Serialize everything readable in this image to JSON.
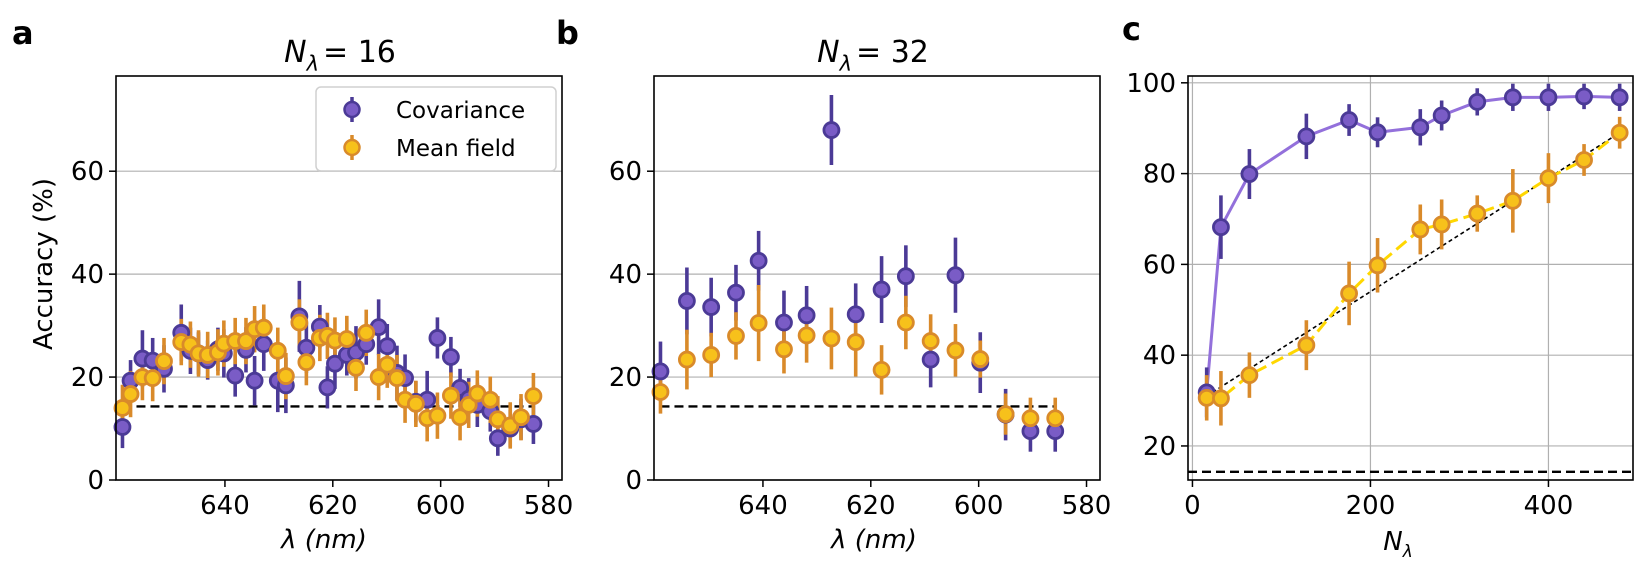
{
  "figure": {
    "panels": [
      "a",
      "b",
      "c"
    ],
    "legend": [
      "Covariance",
      "Mean field"
    ],
    "colors": {
      "cov_fill": "#7a5cc6",
      "cov_edge": "#4b3a96",
      "mf_fill": "#f7c11b",
      "mf_edge": "#d98a2a",
      "cov_line": "#9370db",
      "mf_line": "#ffd700",
      "chance": "#000000",
      "grid": "#b0b0b0"
    }
  },
  "chart_data": [
    {
      "panel": "a",
      "type": "scatter",
      "title": "N_λ = 16",
      "title_main": "N",
      "title_sub": "λ",
      "title_rest": "=  16",
      "xlabel": "λ (nm)",
      "ylabel": "Accuracy (%)",
      "xlim": [
        660.2,
        577.5
      ],
      "ylim": [
        0,
        78.5
      ],
      "xticks": [
        640,
        620,
        600,
        580
      ],
      "yticks": [
        0,
        20,
        40,
        60
      ],
      "grid": "horizontal",
      "chance_level": 14.3,
      "legend_position": "top-right",
      "series": [
        {
          "name": "Covariance",
          "x": [
            659,
            657.5,
            655.3,
            653.4,
            651.3,
            648.1,
            646.4,
            644.9,
            643.2,
            641.3,
            640.2,
            638.1,
            636.1,
            634.5,
            632.8,
            630.2,
            628.7,
            626.2,
            624.9,
            622.4,
            621,
            619.6,
            617.4,
            615.7,
            613.8,
            611.5,
            609.9,
            608.1,
            606.6,
            604.6,
            602.5,
            600.6,
            598.1,
            596.4,
            594.8,
            593.2,
            590.8,
            589.4,
            587.1,
            585.1,
            582.8
          ],
          "y": [
            10.3,
            19.3,
            23.6,
            23.2,
            21.6,
            28.6,
            25.1,
            24.6,
            23.3,
            25.4,
            24.6,
            20.3,
            25.3,
            19.3,
            26.4,
            19.3,
            18.4,
            31.8,
            25.7,
            29.8,
            18.0,
            22.6,
            24.3,
            24.8,
            26.4,
            29.7,
            26.0,
            20.8,
            19.8,
            15.2,
            15.6,
            27.6,
            23.9,
            17.9,
            15.8,
            14.6,
            13.4,
            8.1,
            10.0,
            11.8,
            10.9
          ],
          "err": [
            4.1,
            4.0,
            5.5,
            4.4,
            4.6,
            5.5,
            4.5,
            4.1,
            3.8,
            4.2,
            4.7,
            4.1,
            4.4,
            4.8,
            5.2,
            6.1,
            5.4,
            6.9,
            4.9,
            4.2,
            4.1,
            4.9,
            4.0,
            5.1,
            4.0,
            5.4,
            4.3,
            5.3,
            4.6,
            4.0,
            5.6,
            4.0,
            3.9,
            3.7,
            4.0,
            4.3,
            4.0,
            3.4,
            3.6,
            4.0,
            3.9
          ]
        },
        {
          "name": "Mean field",
          "x": [
            659,
            657.5,
            655.3,
            653.4,
            651.3,
            648.1,
            646.4,
            644.9,
            643.2,
            641.3,
            640.2,
            638.1,
            636.1,
            634.5,
            632.8,
            630.2,
            628.7,
            626.2,
            624.9,
            622.4,
            621,
            619.6,
            617.4,
            615.7,
            613.8,
            611.5,
            609.9,
            608.1,
            606.6,
            604.6,
            602.5,
            600.6,
            598.1,
            596.4,
            594.8,
            593.2,
            590.8,
            589.4,
            587.1,
            585.1,
            582.8
          ],
          "y": [
            14.0,
            16.7,
            20.0,
            19.8,
            23.1,
            26.8,
            26.3,
            24.6,
            24.3,
            24.8,
            26.5,
            27.0,
            27.0,
            29.3,
            29.6,
            25.1,
            20.2,
            30.6,
            22.9,
            27.6,
            28.0,
            27.1,
            27.4,
            21.8,
            28.6,
            20.0,
            22.4,
            19.8,
            15.6,
            14.8,
            12.0,
            12.5,
            16.4,
            12.2,
            14.6,
            16.8,
            15.6,
            11.8,
            10.6,
            12.2,
            16.3
          ]
        }
      ]
    },
    {
      "panel": "b",
      "type": "scatter",
      "title": "N_λ = 32",
      "title_main": "N",
      "title_sub": "λ",
      "title_rest": "=  32",
      "xlabel": "λ (nm)",
      "xlim": [
        660.2,
        577.5
      ],
      "ylim": [
        0,
        78.5
      ],
      "xticks": [
        640,
        620,
        600,
        580
      ],
      "yticks": [
        0,
        20,
        40,
        60
      ],
      "grid": "horizontal",
      "chance_level": 14.3,
      "series": [
        {
          "name": "Covariance",
          "x": [
            659,
            654.1,
            649.6,
            645,
            640.8,
            636.1,
            631.9,
            627.3,
            622.8,
            618,
            613.5,
            608.9,
            604.3,
            599.7,
            595,
            590.4,
            585.8
          ],
          "y": [
            21.1,
            34.8,
            33.6,
            36.4,
            42.6,
            30.6,
            32.0,
            68.0,
            32.2,
            37.0,
            39.6,
            23.4,
            39.8,
            22.8,
            12.7,
            9.5,
            9.5
          ],
          "err": [
            5.8,
            6.5,
            5.7,
            5.4,
            5.8,
            6.2,
            5.7,
            6.8,
            6.0,
            6.5,
            6.0,
            5.4,
            7.3,
            5.9,
            5.0,
            4.0,
            4.0
          ]
        },
        {
          "name": "Mean field",
          "x": [
            659,
            654.1,
            649.6,
            645,
            640.8,
            636.1,
            631.9,
            627.3,
            622.8,
            618,
            613.5,
            608.9,
            604.3,
            599.7,
            595,
            590.4,
            585.8
          ],
          "y": [
            17.1,
            23.4,
            24.3,
            28.0,
            30.5,
            25.4,
            28.1,
            27.5,
            26.8,
            21.4,
            30.6,
            27.0,
            25.2,
            23.5,
            12.8,
            12.0,
            12.0
          ],
          "err": [
            4.2,
            5.8,
            4.3,
            4.6,
            7.4,
            4.7,
            5.3,
            6.0,
            6.7,
            4.8,
            5.2,
            5.2,
            5.1,
            3.6,
            4.0,
            4.0,
            4.0
          ]
        }
      ]
    },
    {
      "panel": "c",
      "type": "line",
      "xlabel": "N_λ",
      "xlabel_main": "N",
      "xlabel_sub": "λ",
      "xlim": [
        -5,
        495
      ],
      "ylim": [
        12.5,
        101.5
      ],
      "xticks": [
        0,
        200,
        400
      ],
      "yticks": [
        20,
        40,
        60,
        80,
        100
      ],
      "grid": "both",
      "chance_level": 14.3,
      "reference_line": {
        "x": [
          16,
          480
        ],
        "y": [
          31,
          89
        ],
        "style": "dotted"
      },
      "series": [
        {
          "name": "Covariance",
          "x": [
            16,
            32,
            64,
            128,
            176,
            208,
            256,
            280,
            320,
            360,
            400,
            440,
            480
          ],
          "y": [
            31.8,
            68.2,
            79.9,
            88.2,
            91.8,
            89.1,
            90.2,
            92.8,
            95.8,
            96.8,
            96.8,
            97.0,
            96.8
          ],
          "err": [
            5.5,
            7.0,
            5.5,
            5.0,
            3.5,
            3.3,
            4.0,
            3.3,
            3.0,
            3.0,
            3.0,
            2.8,
            3.0
          ]
        },
        {
          "name": "Mean field",
          "x": [
            16,
            32,
            64,
            128,
            176,
            208,
            256,
            280,
            320,
            360,
            400,
            440,
            480
          ],
          "y": [
            30.6,
            30.5,
            35.6,
            42.2,
            53.6,
            59.8,
            67.7,
            68.8,
            71.2,
            74.0,
            79.0,
            83.0,
            89.0
          ],
          "err": [
            5.0,
            6.0,
            5.0,
            5.5,
            7.0,
            6.0,
            5.5,
            5.5,
            4.0,
            7.0,
            5.5,
            3.5,
            3.5
          ]
        }
      ]
    }
  ]
}
